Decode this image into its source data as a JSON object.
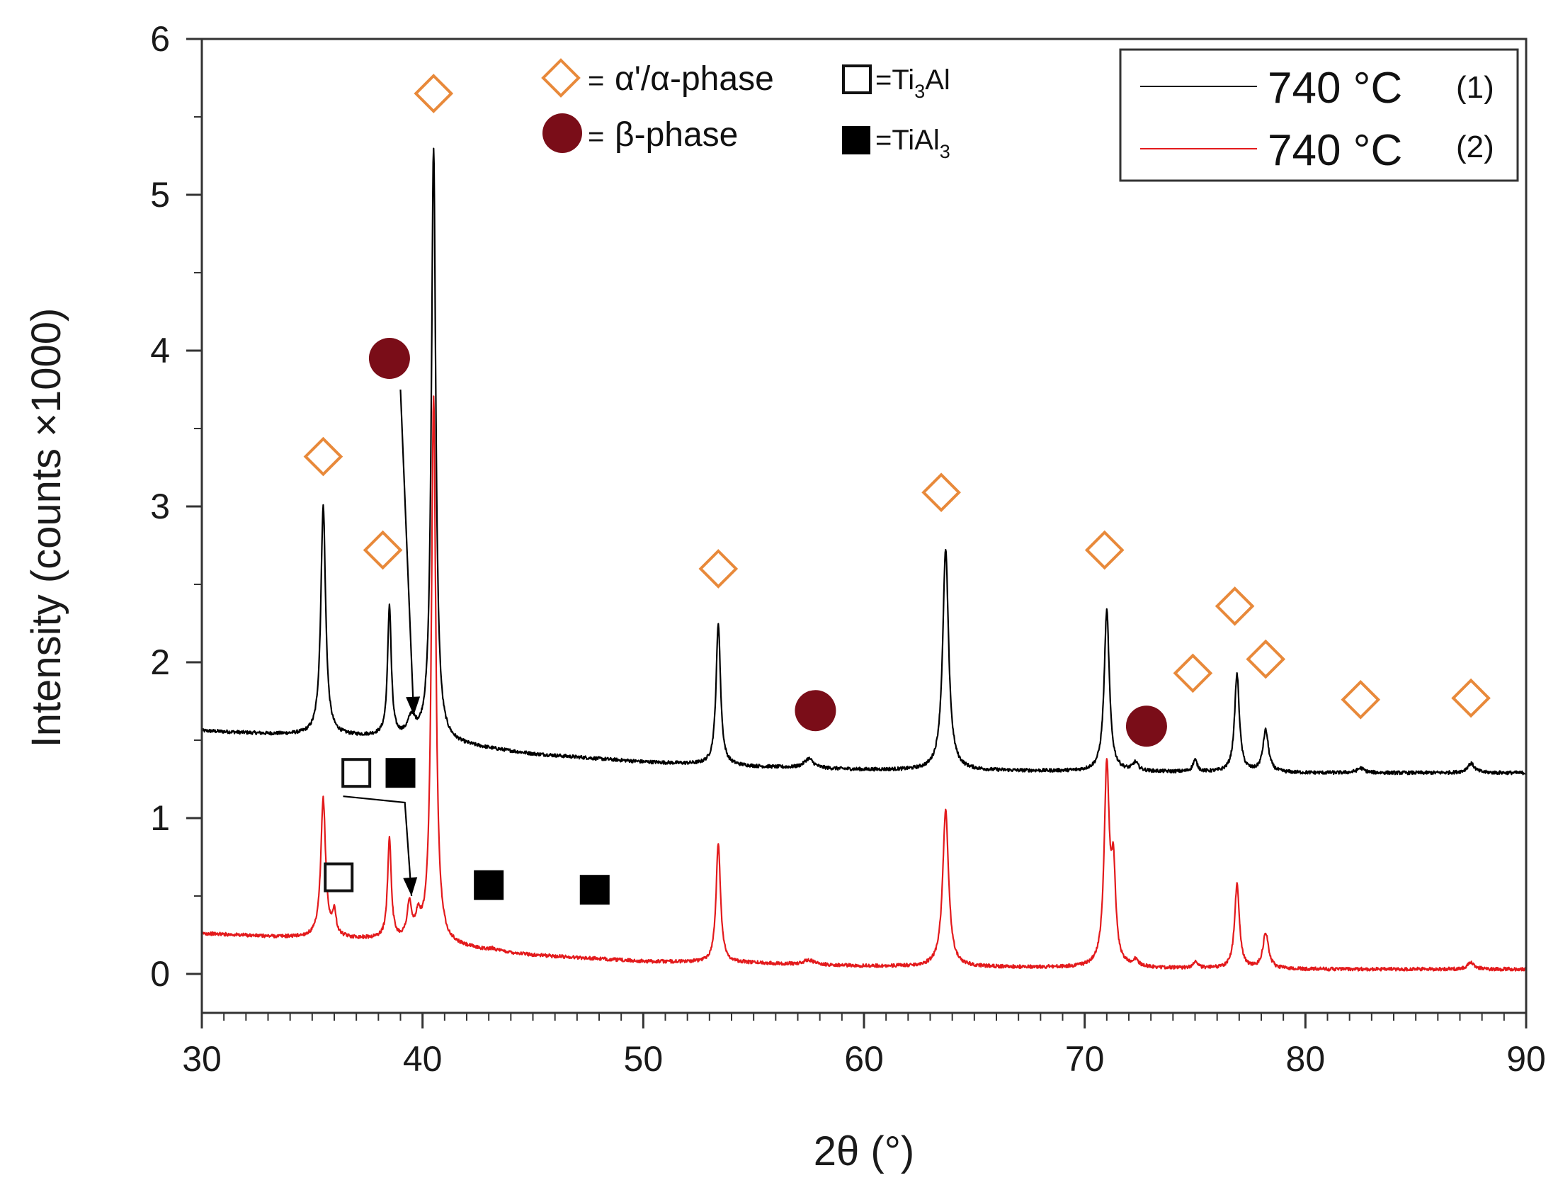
{
  "chart_data": {
    "type": "line",
    "xlabel": "2θ (°)",
    "ylabel": "Intensity (counts ×1000)",
    "xlim": [
      30,
      90
    ],
    "ylim": [
      -0.25,
      6
    ],
    "x_ticks": [
      30,
      40,
      50,
      60,
      70,
      80,
      90
    ],
    "y_ticks": [
      0,
      1,
      2,
      3,
      4,
      5,
      6
    ],
    "grid": false,
    "legend_position": "top-right",
    "series": [
      {
        "name": "740 °C",
        "tag": "(1)",
        "color": "#000000",
        "baseline": [
          [
            30,
            1.56
          ],
          [
            33,
            1.54
          ],
          [
            38,
            1.52
          ],
          [
            41,
            1.48
          ],
          [
            45,
            1.41
          ],
          [
            50,
            1.36
          ],
          [
            55,
            1.33
          ],
          [
            60,
            1.31
          ],
          [
            70,
            1.3
          ],
          [
            80,
            1.29
          ],
          [
            90,
            1.29
          ]
        ],
        "peaks": [
          {
            "x": 35.5,
            "y": 3.0,
            "w": 0.13
          },
          {
            "x": 38.5,
            "y": 2.35,
            "w": 0.1
          },
          {
            "x": 39.5,
            "y": 1.62,
            "w": 0.2
          },
          {
            "x": 40.5,
            "y": 5.3,
            "w": 0.12
          },
          {
            "x": 53.4,
            "y": 2.25,
            "w": 0.12
          },
          {
            "x": 57.5,
            "y": 1.38,
            "w": 0.25
          },
          {
            "x": 63.7,
            "y": 2.72,
            "w": 0.16
          },
          {
            "x": 71.0,
            "y": 2.33,
            "w": 0.14
          },
          {
            "x": 72.3,
            "y": 1.35,
            "w": 0.15
          },
          {
            "x": 75.0,
            "y": 1.37,
            "w": 0.12
          },
          {
            "x": 76.9,
            "y": 1.92,
            "w": 0.13
          },
          {
            "x": 78.2,
            "y": 1.56,
            "w": 0.15
          },
          {
            "x": 82.5,
            "y": 1.32,
            "w": 0.2
          },
          {
            "x": 87.5,
            "y": 1.35,
            "w": 0.2
          }
        ]
      },
      {
        "name": "740 °C",
        "tag": "(2)",
        "color": "#e31a1c",
        "baseline": [
          [
            30,
            0.26
          ],
          [
            33,
            0.24
          ],
          [
            38,
            0.22
          ],
          [
            41,
            0.18
          ],
          [
            45,
            0.12
          ],
          [
            50,
            0.08
          ],
          [
            55,
            0.07
          ],
          [
            60,
            0.05
          ],
          [
            70,
            0.04
          ],
          [
            80,
            0.03
          ],
          [
            90,
            0.03
          ]
        ],
        "peaks": [
          {
            "x": 35.5,
            "y": 1.12,
            "w": 0.13
          },
          {
            "x": 36.0,
            "y": 0.38,
            "w": 0.1
          },
          {
            "x": 38.5,
            "y": 0.86,
            "w": 0.1
          },
          {
            "x": 39.4,
            "y": 0.42,
            "w": 0.12
          },
          {
            "x": 39.8,
            "y": 0.32,
            "w": 0.15
          },
          {
            "x": 40.5,
            "y": 3.7,
            "w": 0.12
          },
          {
            "x": 43.2,
            "y": 0.16,
            "w": 0.12
          },
          {
            "x": 53.4,
            "y": 0.84,
            "w": 0.12
          },
          {
            "x": 57.5,
            "y": 0.09,
            "w": 0.25
          },
          {
            "x": 63.7,
            "y": 1.05,
            "w": 0.16
          },
          {
            "x": 71.0,
            "y": 1.3,
            "w": 0.14
          },
          {
            "x": 71.3,
            "y": 0.6,
            "w": 0.12
          },
          {
            "x": 72.3,
            "y": 0.08,
            "w": 0.15
          },
          {
            "x": 75.0,
            "y": 0.08,
            "w": 0.12
          },
          {
            "x": 76.9,
            "y": 0.57,
            "w": 0.13
          },
          {
            "x": 78.2,
            "y": 0.26,
            "w": 0.15
          },
          {
            "x": 87.5,
            "y": 0.07,
            "w": 0.2
          }
        ]
      }
    ],
    "phase_legend": [
      {
        "symbol": "open-diamond",
        "label_prefix": "=",
        "label": "α'/α-phase",
        "sub": ""
      },
      {
        "symbol": "filled-circle",
        "label_prefix": "=",
        "label": "β-phase",
        "sub": ""
      },
      {
        "symbol": "open-square",
        "label_prefix": "",
        "label": "=Ti",
        "sub": "3",
        "label_suffix": "Al"
      },
      {
        "symbol": "filled-square",
        "label_prefix": "",
        "label": "=TiAl",
        "sub": "3",
        "label_suffix": ""
      }
    ],
    "markers": [
      {
        "symbol": "open-diamond",
        "x": 35.5,
        "y": 3.32
      },
      {
        "symbol": "open-diamond",
        "x": 38.2,
        "y": 2.72
      },
      {
        "symbol": "open-diamond",
        "x": 40.5,
        "y": 5.65
      },
      {
        "symbol": "open-diamond",
        "x": 53.4,
        "y": 2.6
      },
      {
        "symbol": "open-diamond",
        "x": 63.5,
        "y": 3.09
      },
      {
        "symbol": "open-diamond",
        "x": 70.9,
        "y": 2.72
      },
      {
        "symbol": "open-diamond",
        "x": 74.9,
        "y": 1.93
      },
      {
        "symbol": "open-diamond",
        "x": 76.8,
        "y": 2.36
      },
      {
        "symbol": "open-diamond",
        "x": 78.2,
        "y": 2.02
      },
      {
        "symbol": "open-diamond",
        "x": 82.5,
        "y": 1.76
      },
      {
        "symbol": "open-diamond",
        "x": 87.5,
        "y": 1.77
      },
      {
        "symbol": "filled-circle",
        "x": 38.5,
        "y": 3.95
      },
      {
        "symbol": "filled-circle",
        "x": 57.8,
        "y": 1.69
      },
      {
        "symbol": "filled-circle",
        "x": 72.8,
        "y": 1.59
      },
      {
        "symbol": "open-square",
        "x": 37.0,
        "y": 1.29
      },
      {
        "symbol": "filled-square",
        "x": 39.0,
        "y": 1.29
      },
      {
        "symbol": "open-square",
        "x": 36.2,
        "y": 0.62
      },
      {
        "symbol": "filled-square",
        "x": 43.0,
        "y": 0.57
      },
      {
        "symbol": "filled-square",
        "x": 47.8,
        "y": 0.54
      }
    ],
    "annotations": [
      {
        "type": "arrow",
        "from": [
          39.0,
          3.75
        ],
        "to": [
          39.6,
          1.66
        ]
      },
      {
        "type": "arrow",
        "path": [
          [
            36.4,
            1.14
          ],
          [
            39.2,
            1.1
          ],
          [
            39.5,
            0.5
          ]
        ]
      }
    ],
    "colors": {
      "diamond": "#e8893a",
      "circle": "#7a0d18",
      "series_black": "#000000",
      "series_red": "#e31a1c"
    }
  }
}
